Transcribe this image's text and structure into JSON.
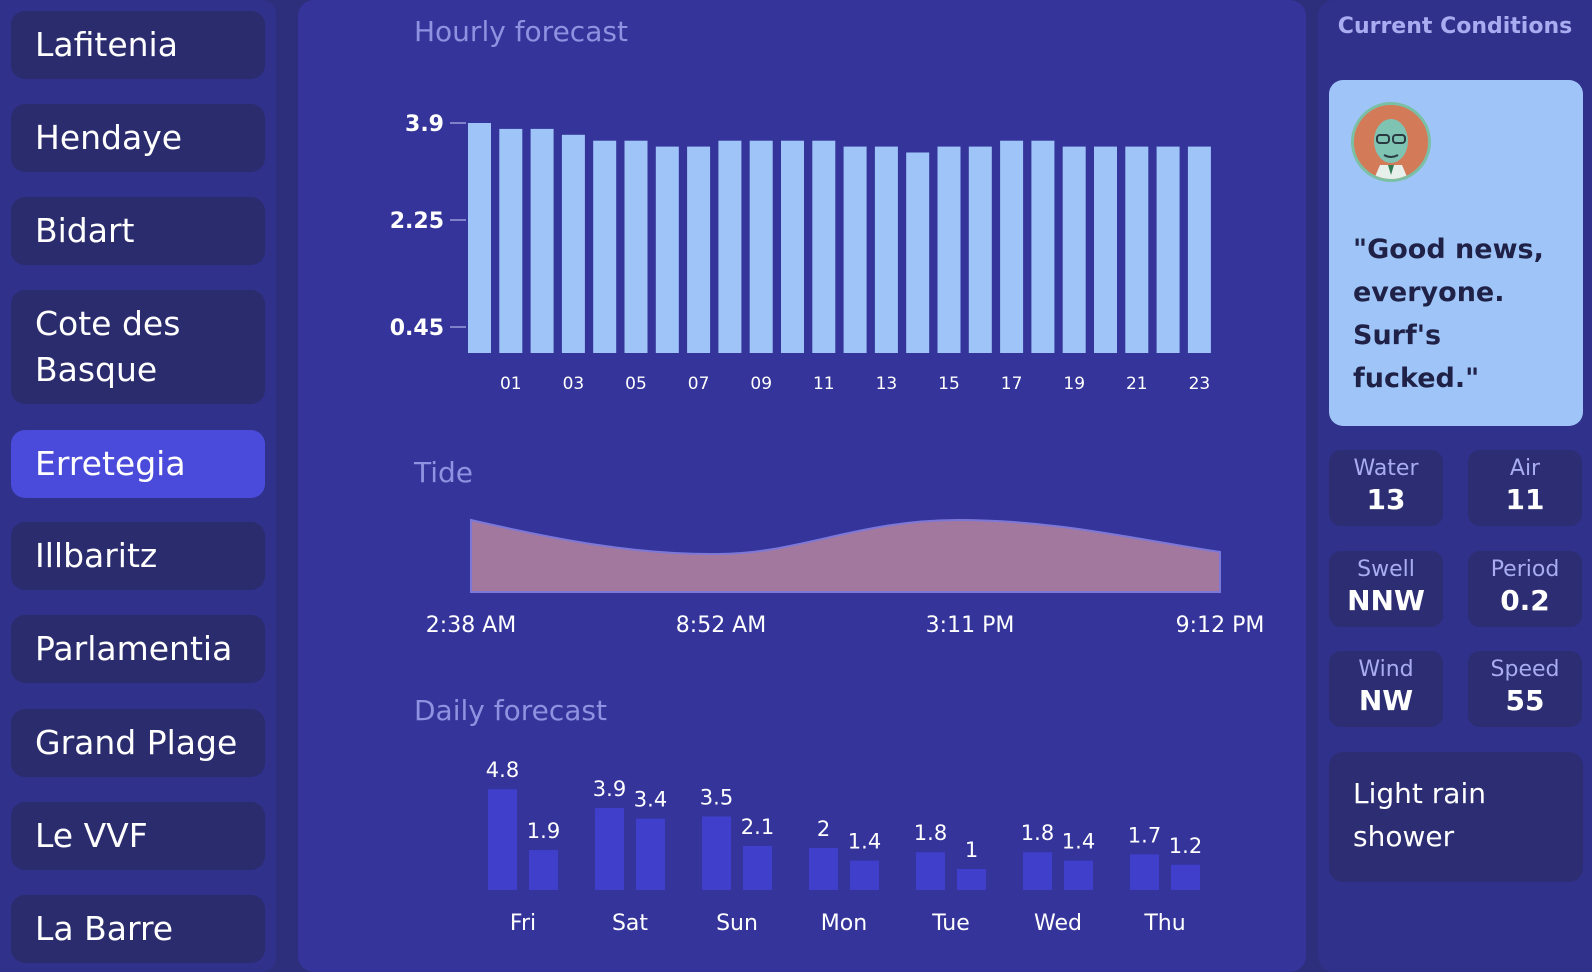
{
  "sidebar": {
    "spots": [
      "Lafitenia",
      "Hendaye",
      "Bidart",
      "Cote des Basque",
      "Erretegia",
      "Illbaritz",
      "Parlamentia",
      "Grand Plage",
      "Le VVF",
      "La Barre"
    ],
    "active_index": 4
  },
  "hourly": {
    "title": "Hourly forecast",
    "chart_data": {
      "type": "bar",
      "y_ticks": [
        3.9,
        2.25,
        0.45
      ],
      "x_tick_labels": [
        "01",
        "03",
        "05",
        "07",
        "09",
        "11",
        "13",
        "15",
        "17",
        "19",
        "21",
        "23"
      ],
      "hours": [
        "00",
        "01",
        "02",
        "03",
        "04",
        "05",
        "06",
        "07",
        "08",
        "09",
        "10",
        "11",
        "12",
        "13",
        "14",
        "15",
        "16",
        "17",
        "18",
        "19",
        "20",
        "21",
        "22",
        "23"
      ],
      "values": [
        3.9,
        3.8,
        3.8,
        3.7,
        3.6,
        3.6,
        3.5,
        3.5,
        3.6,
        3.6,
        3.6,
        3.6,
        3.5,
        3.5,
        3.4,
        3.5,
        3.5,
        3.6,
        3.6,
        3.5,
        3.5,
        3.5,
        3.5,
        3.5
      ],
      "ylim": [
        0,
        3.9
      ],
      "bar_color": "#9fc5f8"
    }
  },
  "tide": {
    "title": "Tide",
    "chart_data": {
      "type": "area",
      "x_labels": [
        "2:38 AM",
        "8:52 AM",
        "3:11 PM",
        "9:12 PM"
      ],
      "fill_color": "#a2789f"
    }
  },
  "daily": {
    "title": "Daily forecast",
    "chart_data": {
      "type": "bar",
      "categories": [
        "Fri",
        "Sat",
        "Sun",
        "Mon",
        "Tue",
        "Wed",
        "Thu"
      ],
      "series": [
        {
          "values": [
            4.8,
            3.9,
            3.5,
            2,
            1.8,
            1.8,
            1.7
          ]
        },
        {
          "values": [
            1.9,
            3.4,
            2.1,
            1.4,
            1,
            1.4,
            1.2
          ]
        }
      ],
      "value_labels": [
        [
          "4.8",
          "1.9"
        ],
        [
          "3.9",
          "3.4"
        ],
        [
          "3.5",
          "2.1"
        ],
        [
          "2",
          "1.4"
        ],
        [
          "1.8",
          "1"
        ],
        [
          "1.8",
          "1.4"
        ],
        [
          "1.7",
          "1.2"
        ]
      ],
      "bar_color": "#3f3fcc"
    }
  },
  "current": {
    "title": "Current Conditions",
    "avatar_icon": "professor-avatar-icon",
    "quote": "\"Good news, everyone. Surf's fucked.\"",
    "stats": {
      "water": {
        "label": "Water",
        "value": "13"
      },
      "air": {
        "label": "Air",
        "value": "11"
      },
      "swell": {
        "label": "Swell",
        "value": "NNW"
      },
      "period": {
        "label": "Period",
        "value": "0.2"
      },
      "wind": {
        "label": "Wind",
        "value": "NW"
      },
      "speed": {
        "label": "Speed",
        "value": "55"
      }
    },
    "condition": "Light rain shower"
  }
}
